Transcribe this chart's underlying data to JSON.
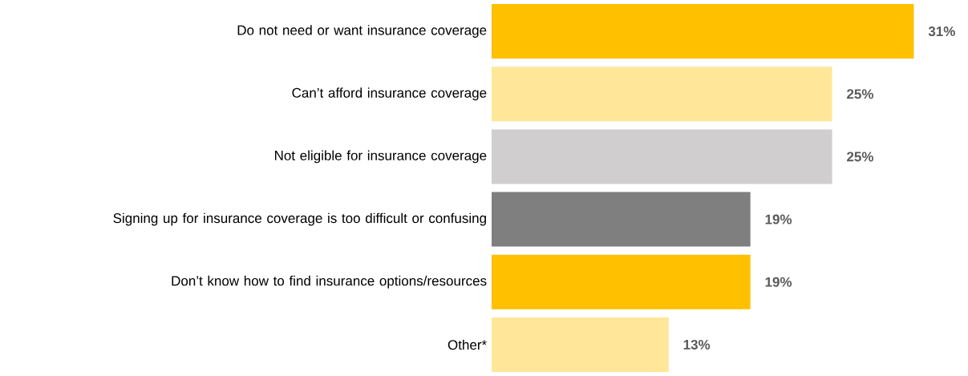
{
  "chart_data": {
    "type": "bar",
    "orientation": "horizontal",
    "categories": [
      "Do not need or want insurance coverage",
      "Can’t afford insurance coverage",
      "Not eligible for insurance coverage",
      "Signing up for insurance coverage is too difficult or confusing",
      "Don’t know how to find insurance options/resources",
      "Other*"
    ],
    "values": [
      31,
      25,
      25,
      19,
      19,
      13
    ],
    "colors": [
      "#ffc000",
      "#ffe699",
      "#d0cece",
      "#7f7f7f",
      "#ffc000",
      "#ffe699"
    ],
    "value_labels": [
      "31%",
      "25%",
      "25%",
      "19%",
      "19%",
      "13%"
    ]
  }
}
